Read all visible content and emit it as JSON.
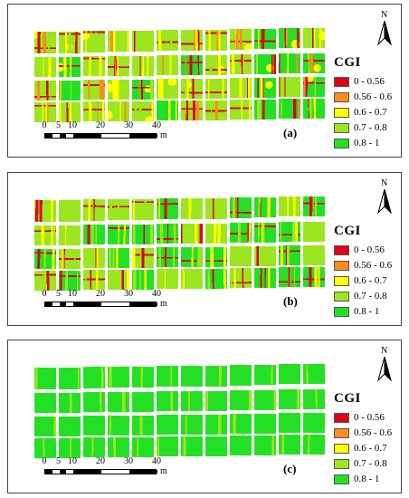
{
  "panels": [
    {
      "label": "(a)",
      "tone": "stressed",
      "legend_title": "CGI",
      "north_label": "N"
    },
    {
      "label": "(b)",
      "tone": "moderate",
      "legend_title": "CGI",
      "north_label": "N"
    },
    {
      "label": "(c)",
      "tone": "healthy",
      "legend_title": "CGI",
      "north_label": "N"
    }
  ],
  "legend": {
    "title": "CGI",
    "classes": [
      {
        "label": "0 - 0.56",
        "color": "#e0001b"
      },
      {
        "label": "0.56 - 0.6",
        "color": "#ff8c1a"
      },
      {
        "label": "0.6 - 0.7",
        "color": "#ffff00"
      },
      {
        "label": "0.7 - 0.8",
        "color": "#9be61e"
      },
      {
        "label": "0.8 - 1",
        "color": "#24e024"
      }
    ]
  },
  "scalebar": {
    "ticks": [
      "0",
      "5",
      "10",
      "20",
      "30",
      "40"
    ],
    "tick_values": [
      0,
      5,
      10,
      20,
      30,
      40
    ],
    "unit": "m"
  },
  "field": {
    "rows": 4,
    "columns": 12
  }
}
